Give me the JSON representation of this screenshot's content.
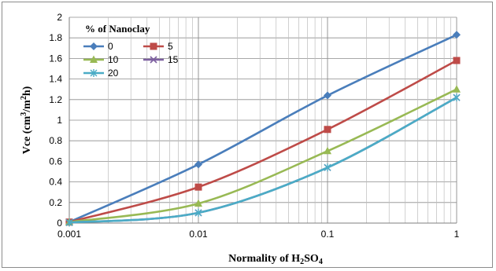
{
  "chart_data": {
    "type": "line",
    "title": "",
    "xlabel": {
      "text": "Normality of H",
      "sub": "2",
      "text2": "SO",
      "sub2": "4"
    },
    "ylabel": {
      "text": "Vce (cm",
      "sup": "3",
      "text2": "/m",
      "sup2": "2",
      "text3": "h)"
    },
    "x_scale": "log",
    "xlim": [
      0.001,
      1
    ],
    "ylim": [
      0,
      2
    ],
    "x_ticks": [
      0.001,
      0.01,
      0.1,
      1
    ],
    "x_tick_labels": [
      "0.001",
      "0.01",
      "0.1",
      "1"
    ],
    "y_ticks": [
      0,
      0.2,
      0.4,
      0.6,
      0.8,
      1,
      1.2,
      1.4,
      1.6,
      1.8,
      2
    ],
    "y_tick_labels": [
      "0",
      "0.2",
      "0.4",
      "0.6",
      "0.8",
      "1",
      "1.2",
      "1.4",
      "1.6",
      "1.8",
      "2"
    ],
    "grid": true,
    "legend": {
      "title": "% of Nanoclay",
      "placement": "top-left"
    },
    "x": [
      0.001,
      0.01,
      0.1,
      1
    ],
    "series": [
      {
        "name": "0",
        "color": "#4a7ebb",
        "marker": "diamond",
        "values": [
          0.01,
          0.57,
          1.24,
          1.83
        ]
      },
      {
        "name": "5",
        "color": "#be4b48",
        "marker": "square",
        "values": [
          0.01,
          0.35,
          0.91,
          1.58
        ]
      },
      {
        "name": "10",
        "color": "#98b954",
        "marker": "triangle",
        "values": [
          0.01,
          0.19,
          0.7,
          1.3
        ]
      },
      {
        "name": "15",
        "color": "#7d60a0",
        "marker": "x",
        "values": [
          0.005,
          0.1,
          0.54,
          1.22
        ]
      },
      {
        "name": "20",
        "color": "#4bacc6",
        "marker": "star",
        "values": [
          0.005,
          0.1,
          0.54,
          1.22
        ]
      }
    ]
  }
}
